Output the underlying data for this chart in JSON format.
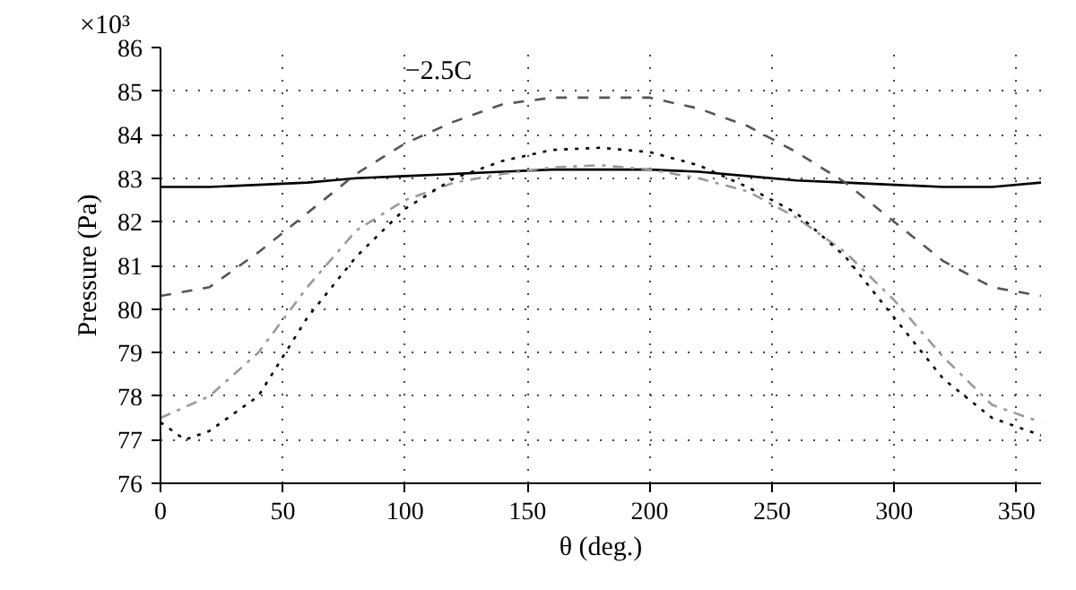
{
  "chart_data": {
    "type": "line",
    "xlabel": "θ (deg.)",
    "ylabel": "Pressure (Pa)",
    "x": [
      0,
      20,
      40,
      60,
      80,
      100,
      120,
      140,
      160,
      180,
      200,
      220,
      240,
      260,
      280,
      300,
      320,
      340,
      360
    ],
    "series": [
      {
        "color": "#000000",
        "line_style": "solid",
        "values": [
          82.8,
          82.8,
          82.85,
          82.9,
          83.0,
          83.05,
          83.1,
          83.15,
          83.2,
          83.2,
          83.2,
          83.15,
          83.05,
          82.95,
          82.9,
          82.85,
          82.8,
          82.8,
          82.9
        ]
      },
      {
        "color": "#555555",
        "line_style": "dashed",
        "values": [
          80.3,
          80.5,
          81.3,
          82.2,
          83.1,
          83.8,
          84.3,
          84.7,
          84.85,
          84.85,
          84.85,
          84.6,
          84.2,
          83.6,
          82.9,
          82.0,
          81.1,
          80.5,
          80.3
        ]
      },
      {
        "color": "#999999",
        "line_style": "dashdot",
        "values": [
          77.5,
          78.0,
          79.0,
          80.5,
          81.8,
          82.5,
          82.9,
          83.1,
          83.25,
          83.3,
          83.2,
          83.0,
          82.7,
          82.1,
          81.3,
          80.2,
          78.9,
          77.8,
          77.4
        ]
      },
      {
        "color": "#000000",
        "line_style": "dotted",
        "x": [
          0,
          10,
          20,
          40,
          60,
          80,
          100,
          120,
          140,
          160,
          180,
          200,
          220,
          240,
          260,
          280,
          300,
          320,
          340,
          360
        ],
        "values": [
          77.4,
          77.0,
          77.2,
          78.0,
          79.8,
          81.2,
          82.3,
          83.0,
          83.4,
          83.65,
          83.7,
          83.6,
          83.3,
          82.8,
          82.2,
          81.2,
          79.8,
          78.4,
          77.5,
          77.1
        ]
      }
    ],
    "xlim": [
      0,
      360
    ],
    "xticks": [
      0,
      50,
      100,
      150,
      200,
      250,
      300,
      350
    ],
    "ylim": [
      76,
      86
    ],
    "yticks": [
      76,
      77,
      78,
      79,
      80,
      81,
      82,
      83,
      84,
      85,
      86
    ],
    "annotations": [
      "−2.5C",
      "×10³"
    ],
    "grid": true
  }
}
